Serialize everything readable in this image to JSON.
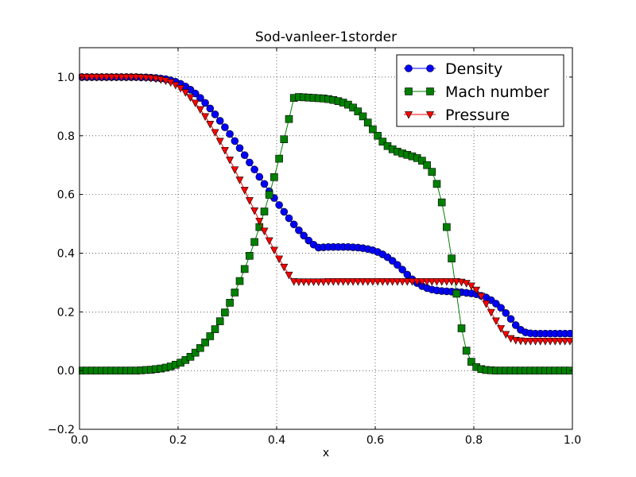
{
  "chart_data": {
    "type": "line",
    "title": "Sod-vanleer-1storder",
    "xlabel": "x",
    "ylabel": "",
    "xlim": [
      0.0,
      1.0
    ],
    "ylim": [
      -0.2,
      1.1
    ],
    "xticks": [
      "0.0",
      "0.2",
      "0.4",
      "0.6",
      "0.8",
      "1.0"
    ],
    "yticks": [
      "−0.2",
      "0.0",
      "0.2",
      "0.4",
      "0.6",
      "0.8",
      "1.0"
    ],
    "xtick_values": [
      0.0,
      0.2,
      0.4,
      0.6,
      0.8,
      1.0
    ],
    "ytick_values": [
      -0.2,
      0.0,
      0.2,
      0.4,
      0.6,
      0.8,
      1.0
    ],
    "grid": true,
    "legend_position": "top-right",
    "x": [
      0.005,
      0.015,
      0.025,
      0.035,
      0.045,
      0.055,
      0.065,
      0.075,
      0.085,
      0.095,
      0.105,
      0.115,
      0.125,
      0.135,
      0.145,
      0.155,
      0.165,
      0.175,
      0.185,
      0.195,
      0.205,
      0.215,
      0.225,
      0.235,
      0.245,
      0.255,
      0.265,
      0.275,
      0.285,
      0.295,
      0.305,
      0.315,
      0.325,
      0.335,
      0.345,
      0.355,
      0.365,
      0.375,
      0.385,
      0.395,
      0.405,
      0.415,
      0.425,
      0.435,
      0.445,
      0.455,
      0.465,
      0.475,
      0.485,
      0.495,
      0.505,
      0.515,
      0.525,
      0.535,
      0.545,
      0.555,
      0.565,
      0.575,
      0.585,
      0.595,
      0.605,
      0.615,
      0.625,
      0.635,
      0.645,
      0.655,
      0.665,
      0.675,
      0.685,
      0.695,
      0.705,
      0.715,
      0.725,
      0.735,
      0.745,
      0.755,
      0.765,
      0.775,
      0.785,
      0.795,
      0.805,
      0.815,
      0.825,
      0.835,
      0.845,
      0.855,
      0.865,
      0.875,
      0.885,
      0.895,
      0.905,
      0.915,
      0.925,
      0.935,
      0.945,
      0.955,
      0.965,
      0.975,
      0.985,
      0.995
    ],
    "series": [
      {
        "name": "Density",
        "color": "#0000ff",
        "marker": "circle",
        "values": [
          1.0,
          1.0,
          1.0,
          1.0,
          1.0,
          1.0,
          1.0,
          1.0,
          1.0,
          1.0,
          1.0,
          1.0,
          0.999,
          0.999,
          0.998,
          0.997,
          0.995,
          0.993,
          0.989,
          0.984,
          0.977,
          0.968,
          0.957,
          0.944,
          0.929,
          0.912,
          0.893,
          0.873,
          0.851,
          0.829,
          0.806,
          0.782,
          0.758,
          0.734,
          0.709,
          0.685,
          0.66,
          0.636,
          0.611,
          0.588,
          0.564,
          0.541,
          0.519,
          0.498,
          0.478,
          0.46,
          0.443,
          0.429,
          0.419,
          0.42,
          0.421,
          0.421,
          0.421,
          0.421,
          0.421,
          0.42,
          0.419,
          0.417,
          0.414,
          0.41,
          0.404,
          0.396,
          0.386,
          0.374,
          0.36,
          0.344,
          0.327,
          0.311,
          0.298,
          0.288,
          0.281,
          0.276,
          0.273,
          0.271,
          0.27,
          0.269,
          0.268,
          0.267,
          0.265,
          0.263,
          0.26,
          0.255,
          0.249,
          0.24,
          0.228,
          0.214,
          0.196,
          0.176,
          0.155,
          0.139,
          0.13,
          0.127,
          0.126,
          0.126,
          0.126,
          0.126,
          0.126,
          0.126,
          0.126,
          0.126
        ]
      },
      {
        "name": "Mach number",
        "color": "#008000",
        "marker": "square",
        "values": [
          0.0,
          0.0,
          0.0,
          0.0,
          0.0,
          0.0,
          0.0,
          0.0,
          0.0,
          0.0,
          0.0,
          0.0,
          0.001,
          0.002,
          0.003,
          0.005,
          0.007,
          0.01,
          0.014,
          0.02,
          0.027,
          0.036,
          0.047,
          0.061,
          0.077,
          0.096,
          0.117,
          0.141,
          0.168,
          0.198,
          0.231,
          0.266,
          0.305,
          0.346,
          0.391,
          0.438,
          0.489,
          0.542,
          0.599,
          0.659,
          0.722,
          0.788,
          0.857,
          0.929,
          0.932,
          0.931,
          0.93,
          0.929,
          0.928,
          0.927,
          0.925,
          0.922,
          0.918,
          0.913,
          0.906,
          0.896,
          0.883,
          0.866,
          0.845,
          0.822,
          0.8,
          0.78,
          0.765,
          0.754,
          0.746,
          0.74,
          0.735,
          0.73,
          0.724,
          0.715,
          0.7,
          0.677,
          0.636,
          0.573,
          0.489,
          0.382,
          0.262,
          0.144,
          0.068,
          0.03,
          0.012,
          0.005,
          0.002,
          0.001,
          0.0,
          0.0,
          0.0,
          0.0,
          0.0,
          0.0,
          0.0,
          0.0,
          0.0,
          0.0,
          0.0,
          0.0,
          0.0,
          0.0,
          0.0,
          0.0
        ]
      },
      {
        "name": "Pressure",
        "color": "#ff0000",
        "marker": "triangle-down",
        "values": [
          1.0,
          1.0,
          1.0,
          1.0,
          1.0,
          1.0,
          1.0,
          1.0,
          1.0,
          1.0,
          1.0,
          1.0,
          0.999,
          0.998,
          0.997,
          0.995,
          0.992,
          0.988,
          0.982,
          0.973,
          0.962,
          0.948,
          0.931,
          0.912,
          0.89,
          0.866,
          0.84,
          0.812,
          0.782,
          0.751,
          0.718,
          0.685,
          0.65,
          0.615,
          0.58,
          0.545,
          0.51,
          0.476,
          0.443,
          0.411,
          0.381,
          0.353,
          0.326,
          0.304,
          0.303,
          0.303,
          0.303,
          0.303,
          0.303,
          0.303,
          0.304,
          0.304,
          0.304,
          0.304,
          0.304,
          0.304,
          0.304,
          0.304,
          0.304,
          0.304,
          0.304,
          0.304,
          0.304,
          0.304,
          0.304,
          0.304,
          0.304,
          0.304,
          0.304,
          0.304,
          0.304,
          0.304,
          0.304,
          0.304,
          0.304,
          0.304,
          0.304,
          0.302,
          0.298,
          0.289,
          0.275,
          0.254,
          0.228,
          0.199,
          0.17,
          0.144,
          0.124,
          0.11,
          0.104,
          0.102,
          0.101,
          0.101,
          0.101,
          0.101,
          0.101,
          0.101,
          0.101,
          0.101,
          0.101,
          0.101
        ]
      }
    ]
  }
}
